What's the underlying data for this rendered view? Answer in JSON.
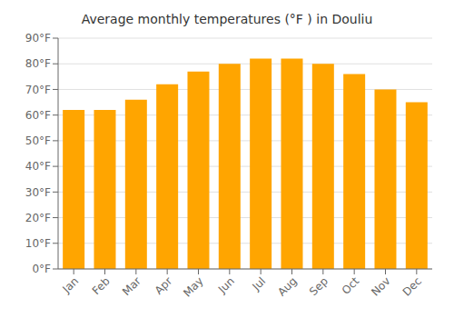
{
  "chart_data": {
    "type": "bar",
    "title": "Average monthly temperatures (°F ) in Douliu",
    "categories": [
      "Jan",
      "Feb",
      "Mar",
      "Apr",
      "May",
      "Jun",
      "Jul",
      "Aug",
      "Sep",
      "Oct",
      "Nov",
      "Dec"
    ],
    "values": [
      62,
      62,
      66,
      72,
      77,
      80,
      82,
      82,
      80,
      76,
      70,
      65
    ],
    "color": "#FFA500",
    "ylim": [
      0,
      90
    ],
    "yticks": [
      {
        "value": 0,
        "label": "0°F"
      },
      {
        "value": 10,
        "label": "10°F"
      },
      {
        "value": 20,
        "label": "20°F"
      },
      {
        "value": 30,
        "label": "30°F"
      },
      {
        "value": 40,
        "label": "40°F"
      },
      {
        "value": 50,
        "label": "50°F"
      },
      {
        "value": 60,
        "label": "60°F"
      },
      {
        "value": 70,
        "label": "70°F"
      },
      {
        "value": 80,
        "label": "80°F"
      },
      {
        "value": 90,
        "label": "90°F"
      }
    ],
    "grid": true
  }
}
